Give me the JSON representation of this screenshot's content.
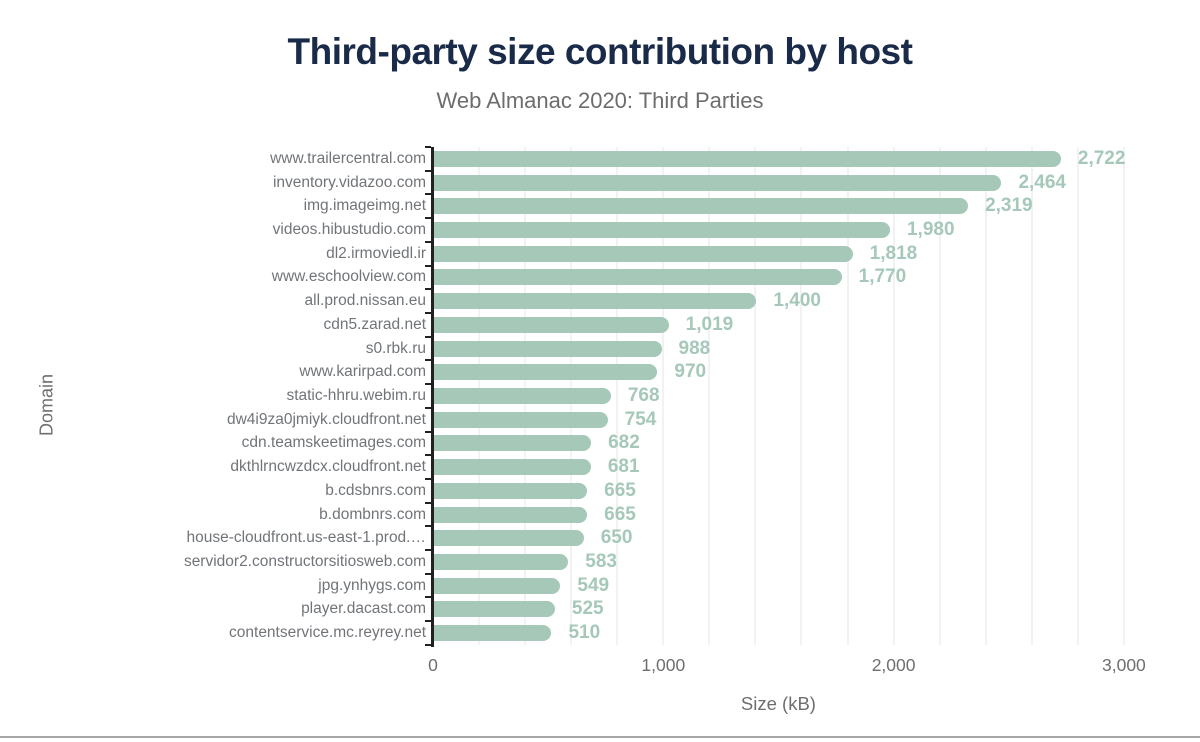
{
  "chart_data": {
    "type": "bar",
    "orientation": "horizontal",
    "title": "Third-party size contribution by host",
    "subtitle": "Web Almanac 2020: Third Parties",
    "xlabel": "Size (kB)",
    "ylabel": "Domain",
    "xlim": [
      0,
      3000
    ],
    "gridline_step": 200,
    "grid_on": true,
    "x_ticks": [
      {
        "value": 0,
        "label": "0"
      },
      {
        "value": 1000,
        "label": "1,000"
      },
      {
        "value": 2000,
        "label": "2,000"
      },
      {
        "value": 3000,
        "label": "3,000"
      }
    ],
    "categories": [
      "www.trailercentral.com",
      "inventory.vidazoo.com",
      "img.imageimg.net",
      "videos.hibustudio.com",
      "dl2.irmoviedl.ir",
      "www.eschoolview.com",
      "all.prod.nissan.eu",
      "cdn5.zarad.net",
      "s0.rbk.ru",
      "www.karirpad.com",
      "static-hhru.webim.ru",
      "dw4i9za0jmiyk.cloudfront.net",
      "cdn.teamskeetimages.com",
      "dkthlrncwzdcx.cloudfront.net",
      "b.cdsbnrs.com",
      "b.dombnrs.com",
      "house-cloudfront.us-east-1.prod.…",
      "servidor2.constructorsitiosweb.com",
      "jpg.ynhygs.com",
      "player.dacast.com",
      "contentservice.mc.reyrey.net"
    ],
    "values": [
      2722,
      2464,
      2319,
      1980,
      1818,
      1770,
      1400,
      1019,
      988,
      970,
      768,
      754,
      682,
      681,
      665,
      665,
      650,
      583,
      549,
      525,
      510
    ],
    "value_labels": [
      "2,722",
      "2,464",
      "2,319",
      "1,980",
      "1,818",
      "1,770",
      "1,400",
      "1,019",
      "988",
      "970",
      "768",
      "754",
      "682",
      "681",
      "665",
      "665",
      "650",
      "583",
      "549",
      "525",
      "510"
    ],
    "colors": {
      "bar": "#a5c8b9",
      "value_label": "#a5c8b9",
      "title": "#1a2b49",
      "subtitle": "#6d6d6d",
      "category_label": "#717579",
      "tick_label": "#6e6e6e",
      "gridline": "#f2f2f2",
      "axis_line": "#212121",
      "footer_divider": "#a6a6a6"
    },
    "legend": "none"
  }
}
